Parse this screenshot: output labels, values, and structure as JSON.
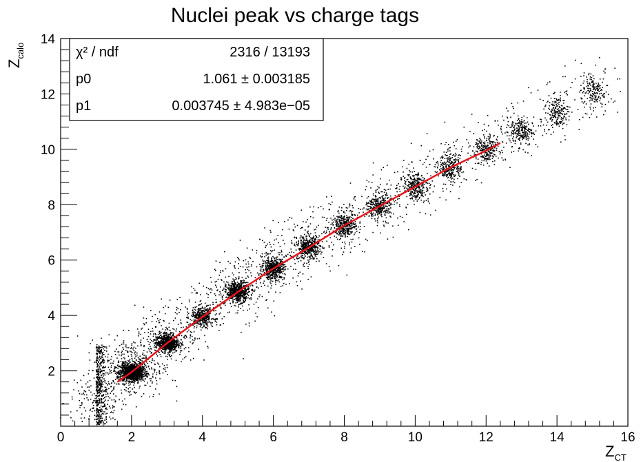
{
  "chart_data": {
    "type": "scatter",
    "title": "Nuclei peak vs charge tags",
    "xlabel": {
      "main": "Z",
      "sub": "CT"
    },
    "ylabel": {
      "main": "Z",
      "sub": "calo"
    },
    "xlim": [
      0,
      16
    ],
    "ylim": [
      0,
      14
    ],
    "xticks": [
      "0",
      "2",
      "4",
      "6",
      "8",
      "10",
      "12",
      "14",
      "16"
    ],
    "yticks": [
      "2",
      "4",
      "6",
      "8",
      "10",
      "12",
      "14"
    ],
    "clusters": [
      {
        "x": 1,
        "y": 0.7
      },
      {
        "x": 2,
        "y": 1.95
      },
      {
        "x": 3,
        "y": 3.0
      },
      {
        "x": 4,
        "y": 3.95
      },
      {
        "x": 5,
        "y": 4.85
      },
      {
        "x": 6,
        "y": 5.7
      },
      {
        "x": 7,
        "y": 6.45
      },
      {
        "x": 8,
        "y": 7.25
      },
      {
        "x": 9,
        "y": 7.95
      },
      {
        "x": 10,
        "y": 8.65
      },
      {
        "x": 11,
        "y": 9.35
      },
      {
        "x": 12,
        "y": 9.95
      },
      {
        "x": 13,
        "y": 10.65
      },
      {
        "x": 14,
        "y": 11.35
      },
      {
        "x": 15,
        "y": 12.1
      }
    ],
    "fit": {
      "color": "#e8141b",
      "x_range": [
        1.6,
        12.4
      ],
      "p0": 1.061,
      "p1": 0.003745
    },
    "stats": {
      "rows": [
        {
          "label": "χ² / ndf",
          "value": "2316 / 13193"
        },
        {
          "label": "p0",
          "value": "1.061 ± 0.003185"
        },
        {
          "label": "p1",
          "value": "0.003745 ± 4.983e−05"
        }
      ]
    },
    "marker_color": "#000000",
    "legend_position": "top-left"
  }
}
